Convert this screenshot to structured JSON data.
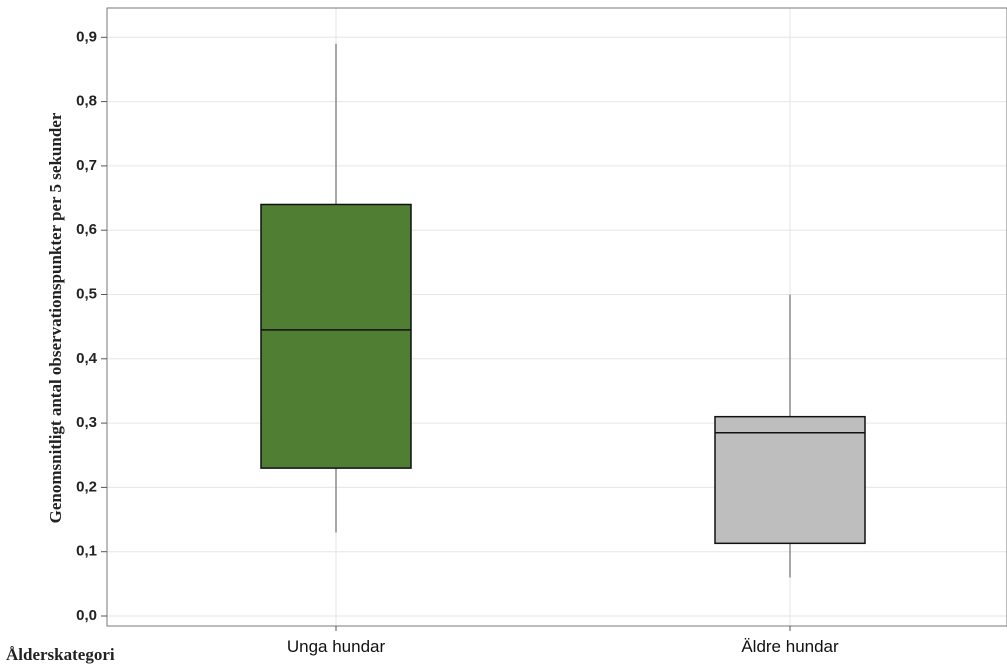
{
  "chart_data": {
    "type": "boxplot",
    "xlabel": "Ålderskategori",
    "ylabel": "Genomsnitligt antal observationspunkter per 5 sekunder",
    "ylim": [
      0.0,
      0.95
    ],
    "yticks": [
      "0,0",
      "0,1",
      "0,2",
      "0,3",
      "0,4",
      "0,5",
      "0,6",
      "0,7",
      "0,8",
      "0,9"
    ],
    "ytick_values": [
      0.0,
      0.1,
      0.2,
      0.3,
      0.4,
      0.5,
      0.6,
      0.7,
      0.8,
      0.9
    ],
    "grid": true,
    "categories": [
      "Unga hundar",
      "Äldre hundar"
    ],
    "boxes": [
      {
        "category": "Unga hundar",
        "min": 0.13,
        "q1": 0.23,
        "median": 0.445,
        "q3": 0.64,
        "max": 0.89,
        "color": "#507f34"
      },
      {
        "category": "Äldre hundar",
        "min": 0.06,
        "q1": 0.113,
        "median": 0.285,
        "q3": 0.31,
        "max": 0.5,
        "color": "#bebebe"
      }
    ]
  }
}
